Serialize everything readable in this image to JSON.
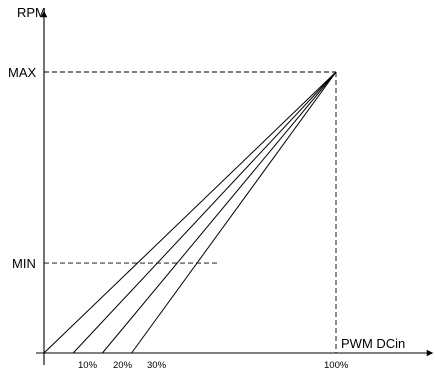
{
  "chart_data": {
    "type": "line",
    "title": "",
    "xlabel": "PWM DCin",
    "ylabel": "RPM",
    "x_ticks": [
      "10%",
      "20%",
      "30%",
      "100%"
    ],
    "y_ticks": [
      "MIN",
      "MAX"
    ],
    "xlim": [
      0,
      100
    ],
    "ylim": [
      0,
      100
    ],
    "reference_levels": {
      "min": 32,
      "max": 100
    },
    "grid": false,
    "series": [
      {
        "x": [
          0,
          100
        ],
        "y": [
          0,
          100
        ]
      },
      {
        "x": [
          10,
          100
        ],
        "y": [
          0,
          100
        ]
      },
      {
        "x": [
          20,
          100
        ],
        "y": [
          0,
          100
        ]
      },
      {
        "x": [
          30,
          100
        ],
        "y": [
          0,
          100
        ]
      }
    ],
    "min_reference_x": 60
  }
}
